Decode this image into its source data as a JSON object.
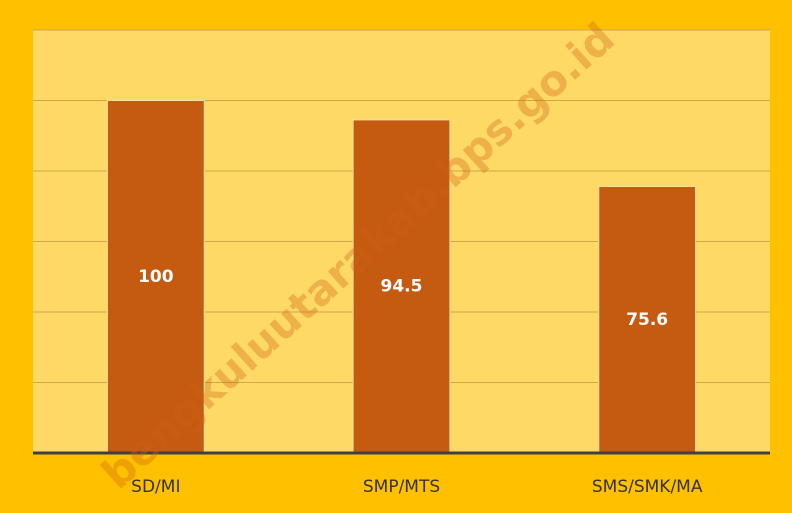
{
  "chart_data": {
    "type": "bar",
    "categories": [
      "SD/MI",
      "SMP/MTS",
      "SMS/SMK/MA"
    ],
    "values": [
      100,
      94.5,
      75.6
    ],
    "color": "#c55a11",
    "ylim": [
      0,
      120
    ],
    "yticks": [
      0,
      20,
      40,
      60,
      80,
      100,
      120
    ],
    "grid": true,
    "watermark": "bengkuluutarakab.bps.go.id"
  }
}
